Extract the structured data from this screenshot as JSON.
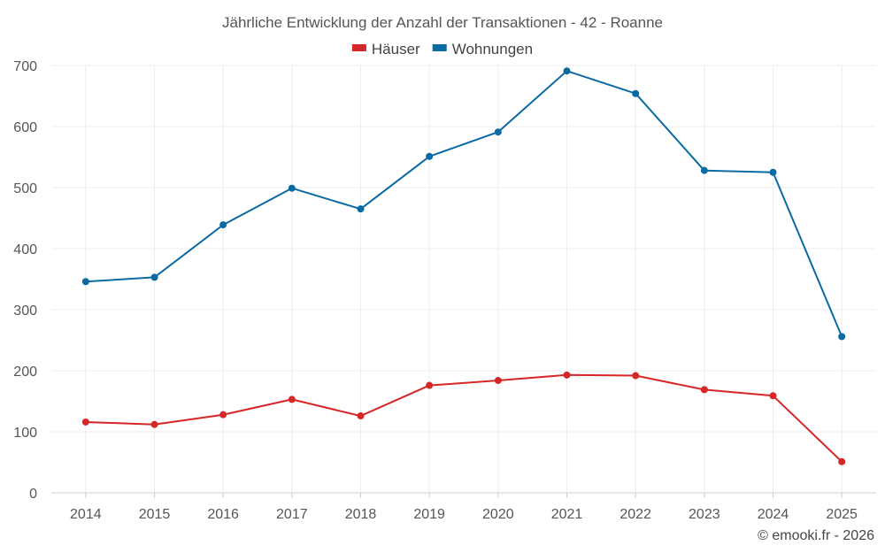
{
  "chart_data": {
    "type": "line",
    "title": "Jährliche Entwicklung der Anzahl der Transaktionen - 42 - Roanne",
    "categories": [
      "2014",
      "2015",
      "2016",
      "2017",
      "2018",
      "2019",
      "2020",
      "2021",
      "2022",
      "2023",
      "2024",
      "2025"
    ],
    "series": [
      {
        "name": "Häuser",
        "color": "#d62728",
        "values": [
          116,
          112,
          128,
          153,
          126,
          176,
          184,
          193,
          192,
          169,
          159,
          51
        ]
      },
      {
        "name": "Wohnungen",
        "color": "#0a6aa1",
        "values": [
          346,
          353,
          439,
          499,
          465,
          551,
          591,
          691,
          654,
          528,
          525,
          256
        ]
      }
    ],
    "ylim": [
      0,
      700
    ],
    "yticks": [
      0,
      100,
      200,
      300,
      400,
      500,
      600,
      700
    ],
    "xlabel": "",
    "ylabel": "",
    "grid": true,
    "legend": "top-center"
  },
  "credit": "© emooki.fr - 2026"
}
